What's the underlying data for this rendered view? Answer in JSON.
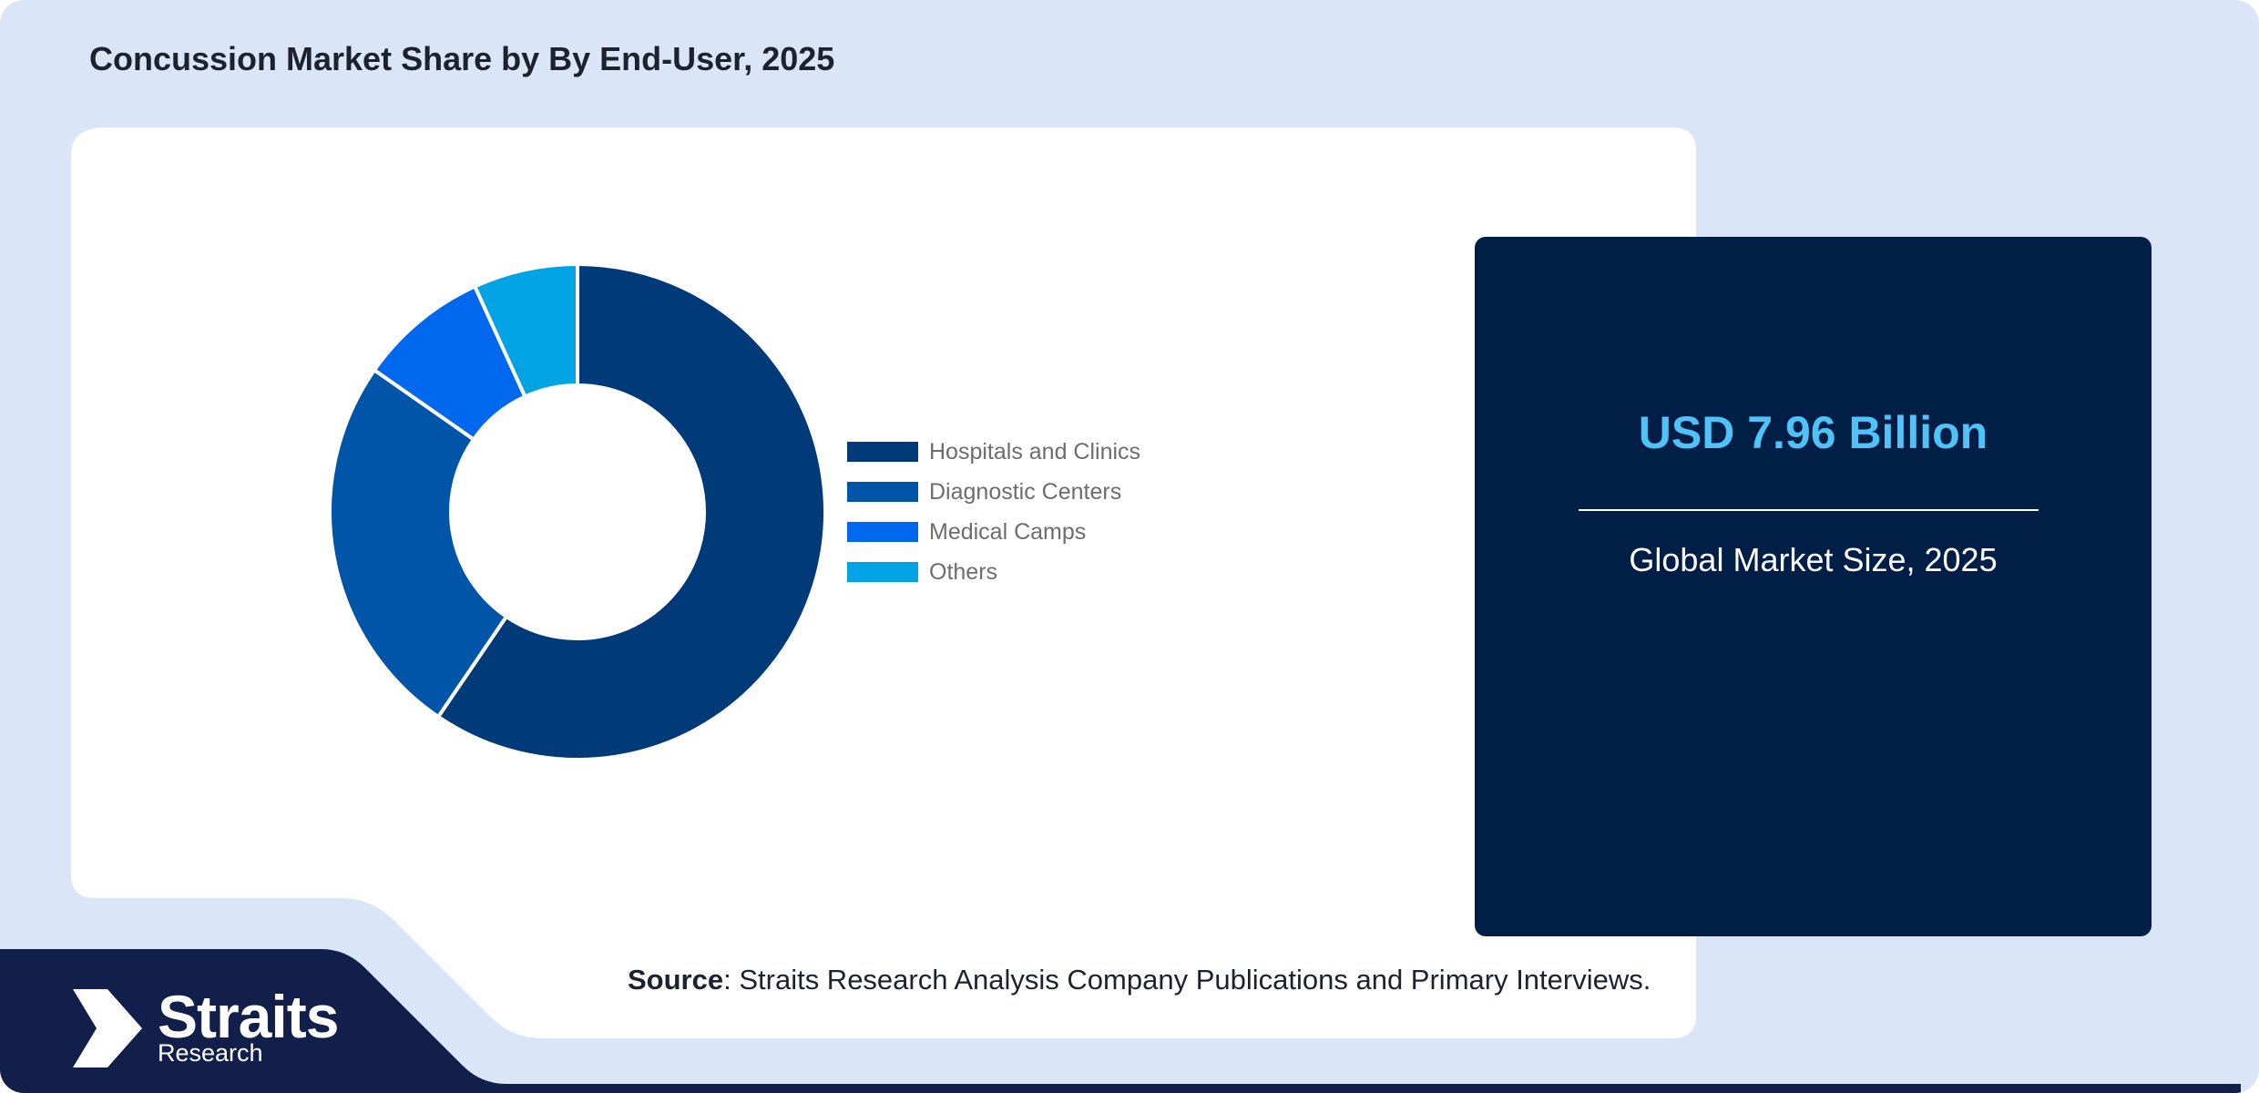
{
  "header": {
    "title": "Concussion Market Share by By End-User, 2025"
  },
  "chart_data": {
    "type": "pie",
    "variant": "donut",
    "categories": [
      "Hospitals and Clinics",
      "Diagnostic Centers",
      "Medical Camps",
      "Others"
    ],
    "values": [
      59.5,
      25.2,
      8.5,
      6.8
    ],
    "colors": [
      "#003a78",
      "#0055a8",
      "#0068ee",
      "#00a3e3"
    ],
    "legend_placement": "right"
  },
  "stat_card": {
    "value": "USD 7.96 Billion",
    "caption": "Global Market Size, 2025"
  },
  "source": {
    "label": "Source",
    "text": ": Straits Research Analysis Company Publications and Primary Interviews."
  },
  "logo": {
    "name": "Straits",
    "sub": "Research",
    "icon": "straits-arrow-logo-icon"
  },
  "colors": {
    "background": "#dae6f8",
    "panel": "#ffffff",
    "stat_card": "#001e46",
    "stat_value": "#4fc3f7",
    "footer_band": "#121f4b"
  }
}
